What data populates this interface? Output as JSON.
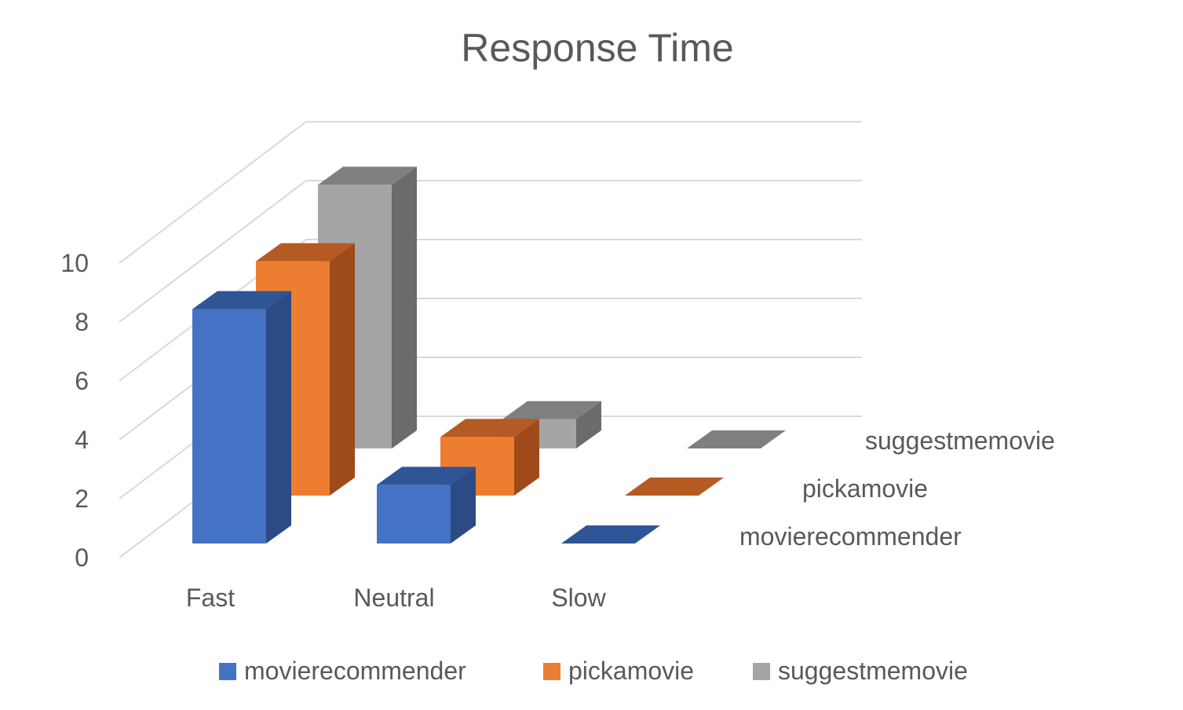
{
  "chart_data": {
    "type": "bar",
    "subtype": "3d-column",
    "title": "Response Time",
    "categories": [
      "Fast",
      "Neutral",
      "Slow"
    ],
    "series": [
      {
        "name": "movierecommender",
        "values": [
          8,
          2,
          0
        ],
        "color": "#4472C4",
        "top_color": "#2F5597",
        "side_color": "#2C4B84"
      },
      {
        "name": "pickamovie",
        "values": [
          8,
          2,
          0
        ],
        "color": "#ED7D31",
        "top_color": "#B55A22",
        "side_color": "#9E4A1B"
      },
      {
        "name": "suggestmemovie",
        "values": [
          9,
          1,
          0
        ],
        "color": "#A5A5A5",
        "top_color": "#7F7F7F",
        "side_color": "#6B6B6B"
      }
    ],
    "y_ticks": [
      "0",
      "2",
      "4",
      "6",
      "8",
      "10"
    ],
    "ylim": [
      0,
      10
    ],
    "xlabel": "",
    "ylabel": "",
    "grid": true,
    "legend": "bottom",
    "depth_axis_labels": [
      "movierecommender",
      "pickamovie",
      "suggestmemovie"
    ]
  }
}
